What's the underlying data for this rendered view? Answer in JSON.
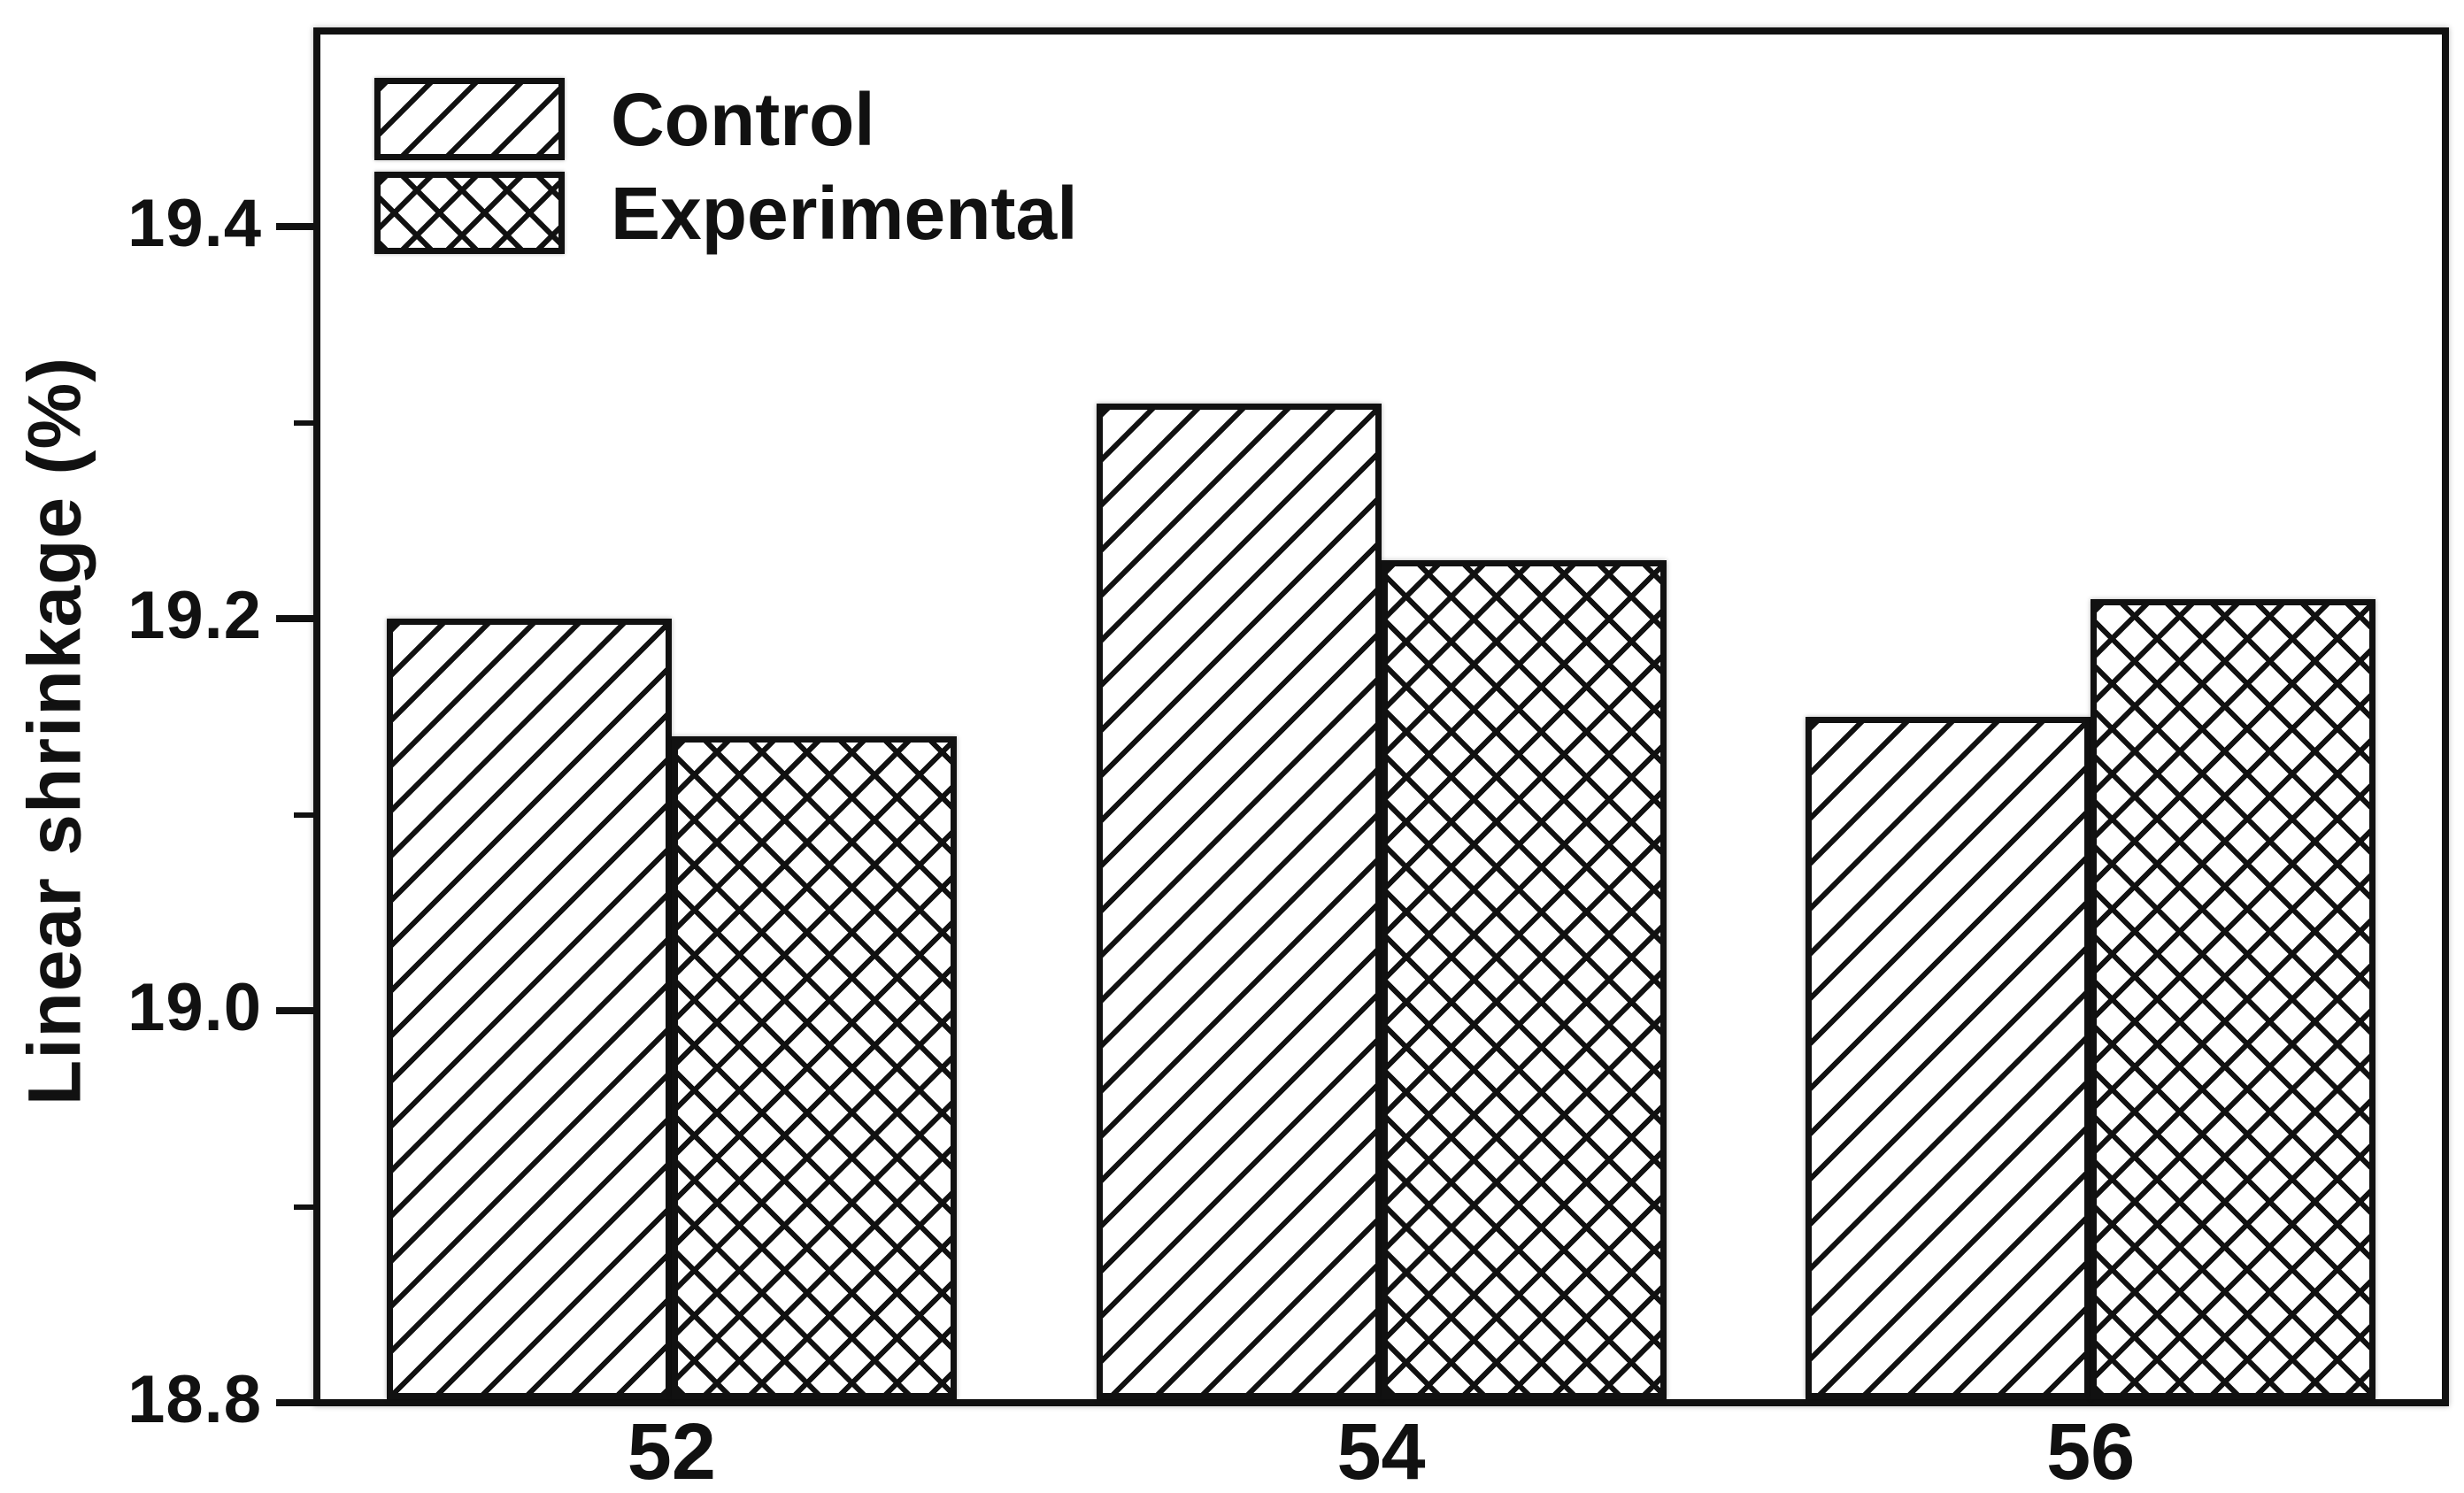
{
  "figure": {
    "background": "#ffffff",
    "ink_color": "#111111",
    "bar_fill": "#ffffff"
  },
  "chart_data": {
    "type": "bar",
    "title": "",
    "xlabel": "",
    "ylabel": "Linear shrinkage (%)",
    "categories": [
      "52",
      "54",
      "56"
    ],
    "series": [
      {
        "name": "Control",
        "hatch": "diagonal",
        "values": [
          19.2,
          19.31,
          19.15
        ]
      },
      {
        "name": "Experimental",
        "hatch": "crosshatch",
        "values": [
          19.14,
          19.23,
          19.21
        ]
      }
    ],
    "ylim": [
      18.8,
      19.5
    ],
    "yticks_major": [
      19.4,
      19.2,
      19.0,
      18.8
    ],
    "yticks_minor": [
      19.3,
      19.1,
      18.9
    ],
    "ytick_decimals": 1,
    "grid": false,
    "legend_position": "top-left",
    "bar_edge_color": "#111111"
  }
}
